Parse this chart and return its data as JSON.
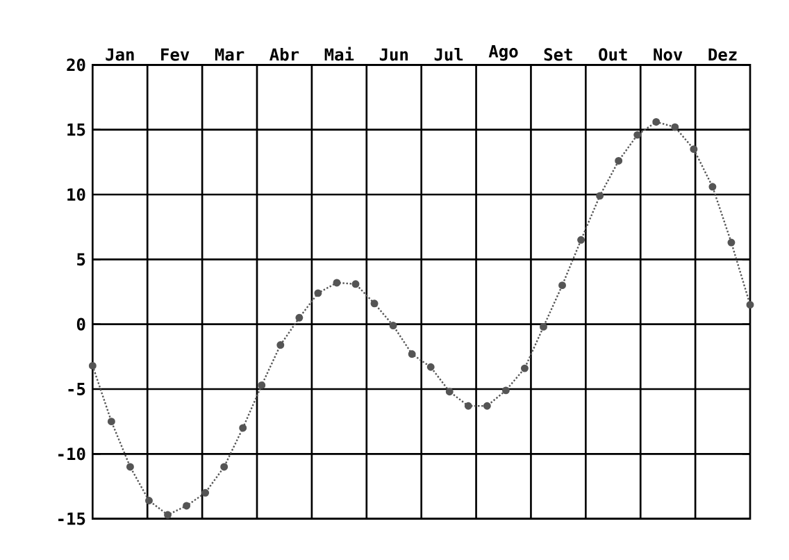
{
  "chart_data": {
    "type": "line",
    "categories": [
      null,
      null,
      null,
      null,
      null,
      null,
      null,
      null,
      null,
      null,
      null,
      null,
      null,
      null,
      null,
      null,
      null,
      null,
      null,
      null,
      null,
      null,
      null,
      null,
      null,
      null,
      null,
      null,
      null,
      null,
      null,
      null,
      null,
      null,
      null,
      null
    ],
    "annotations": [
      "Jan",
      "Fev",
      "Mar",
      "Abr",
      "Mai",
      "Jun",
      "Jul",
      "Ago",
      "Set",
      "Out",
      "Nov",
      "Dez"
    ],
    "ylim": [
      -15,
      20
    ],
    "yticks": [
      -15,
      -10,
      -5,
      0,
      5,
      10,
      15,
      20
    ],
    "grid": true,
    "marker": "circle",
    "line_style": "dotted",
    "series": [
      {
        "color": "#555555",
        "values": [
          -3.2,
          -7.5,
          -11,
          -13.6,
          -14.7,
          -14,
          -13,
          -11,
          -8,
          -4.7,
          -1.6,
          0.5,
          2.4,
          3.2,
          3.1,
          1.6,
          -0.1,
          -2.3,
          -3.3,
          -5.2,
          -6.3,
          -6.3,
          -5.1,
          -3.4,
          -0.2,
          3,
          6.5,
          9.9,
          12.6,
          14.6,
          15.6,
          15.2,
          13.5,
          10.6,
          6.3,
          1.5
        ]
      }
    ]
  }
}
